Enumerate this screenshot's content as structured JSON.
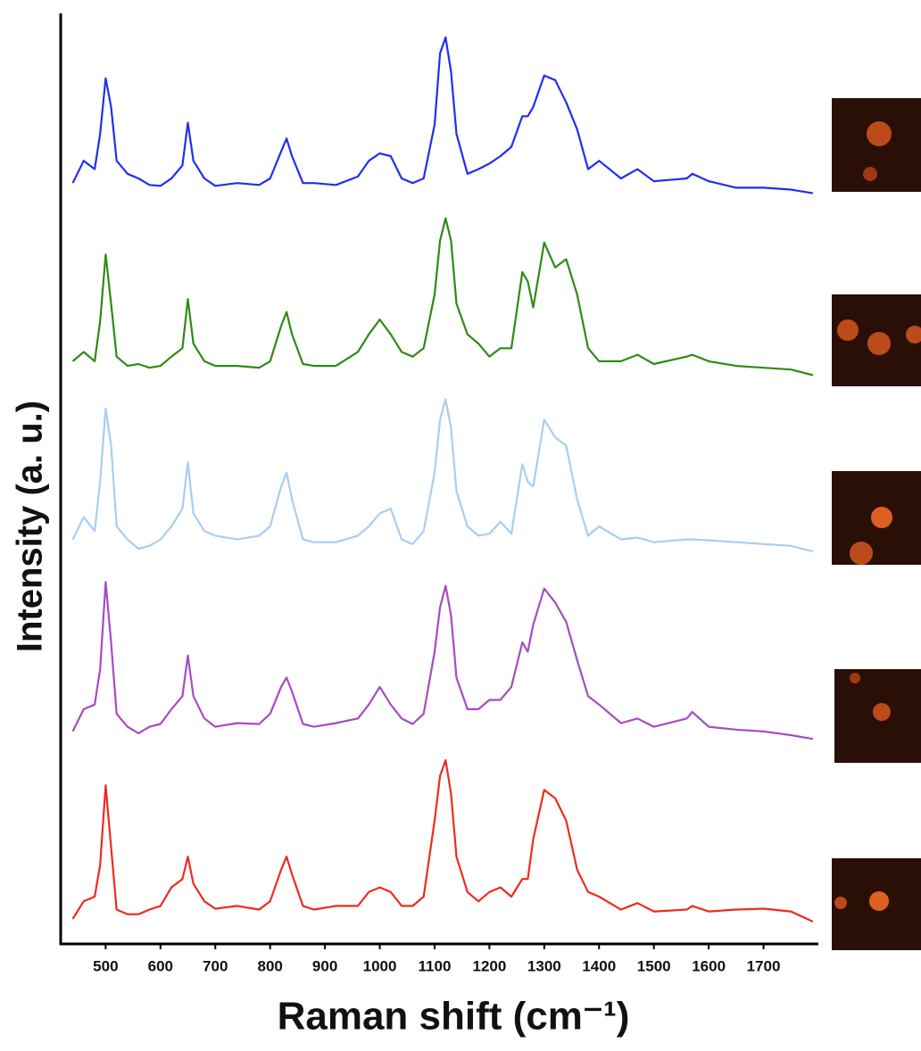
{
  "chart_data": {
    "type": "line",
    "x_label": "Raman shift (cm⁻¹)",
    "y_label": "Intensity (a. u.)",
    "xlim": [
      418,
      1800
    ],
    "xticks": [
      500,
      600,
      700,
      800,
      900,
      1000,
      1100,
      1200,
      1300,
      1400,
      1500,
      1600,
      1700
    ],
    "ylim": [
      0,
      100
    ],
    "grid": false,
    "x": [
      440,
      460,
      480,
      490,
      500,
      510,
      520,
      540,
      560,
      580,
      600,
      620,
      640,
      650,
      660,
      680,
      700,
      740,
      780,
      800,
      820,
      830,
      840,
      860,
      880,
      920,
      960,
      980,
      1000,
      1020,
      1040,
      1060,
      1080,
      1100,
      1110,
      1120,
      1130,
      1140,
      1160,
      1180,
      1200,
      1220,
      1240,
      1260,
      1270,
      1280,
      1300,
      1320,
      1340,
      1360,
      1380,
      1400,
      1440,
      1470,
      1500,
      1560,
      1570,
      1600,
      1650,
      1700,
      1750,
      1790
    ],
    "series": [
      {
        "color": "#1f2ff0",
        "values": [
          82.0,
          84.4,
          83.5,
          87.3,
          93.3,
          90.2,
          84.4,
          83.0,
          82.5,
          81.8,
          81.7,
          82.5,
          83.9,
          88.5,
          84.4,
          82.5,
          81.7,
          82.0,
          81.8,
          82.5,
          85.4,
          86.8,
          84.9,
          82.0,
          82.0,
          81.8,
          82.7,
          84.4,
          85.2,
          84.9,
          82.5,
          82.0,
          82.5,
          88.3,
          96.0,
          97.7,
          94.0,
          87.3,
          83.0,
          83.5,
          84.1,
          84.9,
          85.9,
          89.2,
          89.2,
          90.2,
          93.6,
          93.1,
          90.7,
          87.8,
          83.5,
          84.4,
          82.5,
          83.5,
          82.2,
          82.5,
          83.0,
          82.2,
          81.5,
          81.5,
          81.3,
          80.9
        ]
      },
      {
        "color": "#2e8b14",
        "values": [
          62.8,
          63.8,
          62.8,
          67.1,
          74.3,
          69.0,
          63.3,
          62.3,
          62.5,
          62.1,
          62.3,
          63.3,
          64.2,
          69.5,
          64.7,
          62.8,
          62.3,
          62.3,
          62.1,
          62.8,
          66.6,
          68.1,
          65.7,
          62.5,
          62.3,
          62.3,
          63.8,
          65.7,
          67.3,
          65.7,
          63.8,
          63.3,
          64.2,
          70.0,
          75.8,
          78.2,
          75.8,
          69.0,
          65.7,
          64.7,
          63.3,
          64.2,
          64.2,
          72.4,
          71.4,
          68.6,
          75.6,
          72.9,
          73.8,
          70.0,
          64.2,
          62.8,
          62.8,
          63.5,
          62.5,
          63.3,
          63.5,
          62.8,
          62.3,
          62.1,
          61.9,
          61.3
        ]
      },
      {
        "color": "#a9cdf2",
        "values": [
          43.6,
          46.0,
          44.5,
          49.8,
          57.7,
          53.7,
          45.0,
          43.6,
          42.6,
          42.9,
          43.6,
          45.0,
          46.9,
          51.9,
          46.4,
          44.5,
          44.0,
          43.6,
          44.0,
          45.0,
          49.3,
          50.8,
          47.9,
          43.6,
          43.3,
          43.3,
          44.0,
          45.0,
          46.4,
          46.9,
          43.6,
          43.1,
          44.5,
          50.8,
          56.5,
          58.7,
          55.6,
          48.8,
          45.0,
          44.0,
          44.2,
          45.5,
          44.2,
          51.7,
          49.8,
          49.3,
          56.5,
          54.6,
          53.7,
          47.9,
          44.0,
          45.0,
          43.6,
          43.8,
          43.3,
          43.6,
          43.6,
          43.5,
          43.3,
          43.1,
          42.9,
          42.3
        ]
      },
      {
        "color": "#a64cc0",
        "values": [
          22.9,
          25.3,
          25.8,
          29.6,
          39.0,
          32.5,
          24.8,
          23.4,
          22.7,
          23.4,
          23.7,
          25.3,
          26.7,
          31.1,
          26.7,
          24.3,
          23.4,
          23.8,
          23.7,
          24.8,
          27.7,
          28.7,
          27.2,
          23.7,
          23.4,
          23.8,
          24.3,
          25.8,
          27.7,
          25.8,
          24.3,
          23.7,
          24.8,
          31.5,
          36.3,
          38.6,
          35.4,
          28.7,
          25.3,
          25.3,
          26.3,
          26.3,
          27.7,
          32.5,
          31.5,
          34.4,
          38.3,
          36.8,
          34.7,
          30.6,
          26.7,
          25.8,
          23.8,
          24.3,
          23.4,
          24.3,
          25.0,
          23.4,
          23.1,
          22.9,
          22.5,
          22.1
        ]
      },
      {
        "color": "#f02a1e",
        "values": [
          2.7,
          4.6,
          5.1,
          8.5,
          17.1,
          10.4,
          3.7,
          3.2,
          3.2,
          3.7,
          4.1,
          6.1,
          7.0,
          9.4,
          6.5,
          4.6,
          3.8,
          4.1,
          3.7,
          4.6,
          8.0,
          9.4,
          7.5,
          4.1,
          3.7,
          4.1,
          4.1,
          5.6,
          6.1,
          5.6,
          4.1,
          4.1,
          5.1,
          13.3,
          18.1,
          19.8,
          16.2,
          9.4,
          5.6,
          4.6,
          5.6,
          6.1,
          5.1,
          7.0,
          7.0,
          11.3,
          16.6,
          15.7,
          13.3,
          8.0,
          5.6,
          5.1,
          3.7,
          4.4,
          3.5,
          3.7,
          4.1,
          3.5,
          3.7,
          3.8,
          3.5,
          2.4
        ]
      }
    ]
  }
}
